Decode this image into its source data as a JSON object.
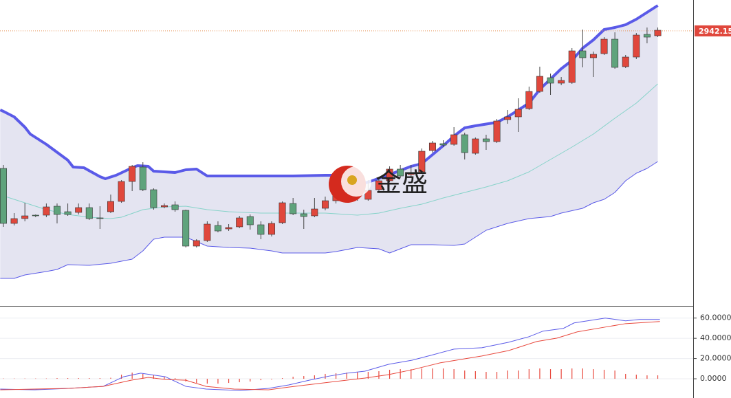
{
  "watermark": "金盛",
  "chart_data": [
    {
      "type": "candlestick",
      "xlim": [
        -0.32,
        64.3
      ],
      "ylim": [
        2142,
        3032
      ],
      "up_color": "#e0473c",
      "down_color": "#5fa37c",
      "price_line_color": "#e8955a",
      "price_label": 2942.15,
      "x": [
        0,
        1,
        2,
        3,
        4,
        5,
        6,
        7,
        8,
        9,
        10,
        11,
        12,
        13,
        14,
        15,
        16,
        17,
        18,
        19,
        20,
        21,
        22,
        23,
        24,
        25,
        26,
        27,
        28,
        29,
        30,
        31,
        32,
        33,
        34,
        35,
        36,
        37,
        38,
        39,
        40,
        41,
        42,
        43,
        44,
        45,
        46,
        47,
        48,
        49,
        50,
        51,
        52,
        53,
        54,
        55,
        56,
        57,
        58,
        59,
        60,
        61
      ],
      "open": [
        2542,
        2382,
        2396,
        2406,
        2406,
        2432,
        2416,
        2414,
        2428,
        2398,
        2416,
        2446,
        2504,
        2546,
        2480,
        2430,
        2436,
        2420,
        2316,
        2332,
        2376,
        2366,
        2372,
        2402,
        2378,
        2350,
        2384,
        2440,
        2410,
        2404,
        2426,
        2448,
        2458,
        2492,
        2452,
        2480,
        2506,
        2540,
        2524,
        2532,
        2594,
        2614,
        2612,
        2640,
        2586,
        2628,
        2620,
        2684,
        2692,
        2716,
        2766,
        2806,
        2790,
        2792,
        2884,
        2864,
        2876,
        2918,
        2838,
        2866,
        2932,
        2928
      ],
      "high": [
        2552,
        2412,
        2442,
        2408,
        2440,
        2440,
        2440,
        2440,
        2440,
        2432,
        2466,
        2508,
        2552,
        2560,
        2484,
        2440,
        2446,
        2422,
        2336,
        2388,
        2388,
        2380,
        2404,
        2408,
        2388,
        2388,
        2446,
        2456,
        2422,
        2456,
        2460,
        2492,
        2508,
        2508,
        2508,
        2516,
        2548,
        2552,
        2552,
        2600,
        2622,
        2624,
        2662,
        2646,
        2632,
        2640,
        2686,
        2712,
        2746,
        2780,
        2838,
        2818,
        2808,
        2892,
        2946,
        2882,
        2924,
        2938,
        2872,
        2936,
        2952,
        2952
      ],
      "low": [
        2372,
        2376,
        2388,
        2400,
        2400,
        2382,
        2404,
        2408,
        2392,
        2366,
        2412,
        2442,
        2476,
        2476,
        2422,
        2426,
        2416,
        2312,
        2312,
        2328,
        2356,
        2360,
        2368,
        2364,
        2336,
        2344,
        2380,
        2406,
        2366,
        2400,
        2420,
        2440,
        2448,
        2448,
        2448,
        2476,
        2502,
        2516,
        2516,
        2528,
        2588,
        2604,
        2608,
        2568,
        2582,
        2596,
        2616,
        2672,
        2648,
        2712,
        2762,
        2756,
        2784,
        2788,
        2836,
        2808,
        2872,
        2832,
        2834,
        2860,
        2906,
        2924
      ],
      "close": [
        2382,
        2396,
        2404,
        2404,
        2430,
        2408,
        2408,
        2428,
        2396,
        2396,
        2446,
        2504,
        2548,
        2480,
        2428,
        2434,
        2422,
        2316,
        2332,
        2380,
        2360,
        2370,
        2398,
        2378,
        2350,
        2382,
        2442,
        2410,
        2402,
        2424,
        2448,
        2472,
        2492,
        2468,
        2478,
        2506,
        2540,
        2520,
        2530,
        2592,
        2616,
        2610,
        2640,
        2588,
        2628,
        2620,
        2680,
        2692,
        2714,
        2766,
        2810,
        2790,
        2798,
        2884,
        2864,
        2874,
        2918,
        2836,
        2866,
        2930,
        2924,
        2944
      ],
      "bands": [
        {
          "color": "#5a5ae8",
          "width": 4,
          "x": [
            -0.3,
            0,
            1,
            2,
            2.5,
            4,
            6,
            6.5,
            7.5,
            9,
            9.5,
            10.5,
            12,
            12.5,
            13.5,
            14,
            16,
            17,
            18,
            19,
            24,
            27,
            30,
            31,
            32,
            33,
            34,
            36,
            37,
            38,
            39,
            40,
            41,
            42,
            43,
            44,
            46,
            47,
            48,
            49,
            50,
            51,
            52,
            53,
            54,
            55,
            56,
            57,
            58,
            59,
            60,
            61
          ],
          "values": [
            2712,
            2708,
            2692,
            2662,
            2642,
            2612,
            2566,
            2546,
            2544,
            2518,
            2512,
            2522,
            2544,
            2550,
            2548,
            2534,
            2530,
            2538,
            2540,
            2520,
            2520,
            2520,
            2522,
            2522,
            2508,
            2496,
            2502,
            2524,
            2536,
            2548,
            2556,
            2582,
            2608,
            2636,
            2660,
            2666,
            2676,
            2692,
            2712,
            2732,
            2772,
            2802,
            2832,
            2856,
            2892,
            2916,
            2946,
            2952,
            2960,
            2976,
            2996,
            3016
          ]
        },
        {
          "color": "#86d3c9",
          "width": 1,
          "x": [
            0,
            2,
            4,
            6,
            8,
            10,
            11,
            13,
            15,
            17,
            19,
            21,
            24,
            27,
            30,
            32,
            33,
            35,
            37,
            39,
            41,
            43,
            45,
            47,
            49,
            51,
            53,
            55,
            57,
            59,
            61
          ],
          "values": [
            2462,
            2442,
            2422,
            2408,
            2400,
            2396,
            2400,
            2422,
            2430,
            2432,
            2422,
            2416,
            2412,
            2412,
            2412,
            2408,
            2406,
            2412,
            2426,
            2438,
            2456,
            2472,
            2488,
            2506,
            2532,
            2568,
            2604,
            2642,
            2688,
            2732,
            2788
          ]
        },
        {
          "color": "#5a5ae8",
          "width": 1,
          "x": [
            -0.3,
            1,
            2,
            4,
            5,
            6,
            8,
            10,
            11,
            12,
            13,
            14,
            15,
            17,
            19,
            21,
            23,
            25,
            26,
            30,
            31,
            33,
            35,
            36,
            37,
            38,
            40,
            42,
            43,
            44,
            45,
            47,
            49,
            51,
            52,
            54,
            55,
            56,
            57,
            58,
            59,
            60,
            61
          ],
          "values": [
            2222,
            2222,
            2232,
            2242,
            2248,
            2262,
            2260,
            2266,
            2272,
            2278,
            2302,
            2336,
            2342,
            2342,
            2316,
            2312,
            2310,
            2302,
            2296,
            2296,
            2300,
            2312,
            2308,
            2296,
            2308,
            2320,
            2320,
            2318,
            2322,
            2342,
            2362,
            2382,
            2396,
            2402,
            2412,
            2426,
            2442,
            2452,
            2472,
            2506,
            2528,
            2542,
            2562
          ]
        }
      ],
      "band_fill": "#e4e4f1"
    },
    {
      "type": "line",
      "xlim": [
        -0.32,
        64.3
      ],
      "ylim": [
        -19,
        70
      ],
      "grid": true,
      "yticks": [
        {
          "value": 60,
          "label": "60.0000"
        },
        {
          "value": 40,
          "label": "40.0000"
        },
        {
          "value": 20,
          "label": "20.0000"
        },
        {
          "value": 0,
          "label": "0.0000"
        }
      ],
      "series": [
        {
          "color": "#5a5ae8",
          "x": [
            -0.3,
            2.9,
            6.1,
            9.3,
            11.2,
            12.8,
            15.1,
            17,
            18.9,
            22.1,
            24.7,
            26.6,
            28.5,
            30.4,
            32,
            33.7,
            35.9,
            38.1,
            40.1,
            42,
            44.6,
            47.1,
            49,
            50.3,
            52.2,
            53.2,
            56.1,
            58,
            59.3,
            61.2
          ],
          "values": [
            -10.2,
            -10.9,
            -9.5,
            -7.5,
            2.0,
            5.5,
            2.0,
            -7.5,
            -10.2,
            -11.6,
            -9.5,
            -6.1,
            -1.4,
            2.7,
            5.5,
            7.5,
            14.3,
            18.4,
            23.9,
            29.3,
            30.7,
            36.1,
            41.6,
            47.1,
            49.8,
            55.2,
            60.0,
            57.3,
            58.6,
            58.6
          ]
        },
        {
          "color": "#e8473c",
          "x": [
            -0.3,
            2.9,
            6.1,
            9.3,
            11.9,
            13.5,
            15.1,
            17,
            18.9,
            21.5,
            24.7,
            26.6,
            30.4,
            33.7,
            35.9,
            38.1,
            40.7,
            44.6,
            47.1,
            49.7,
            51.6,
            53.5,
            56.1,
            58,
            61.2
          ],
          "values": [
            -10.9,
            -10.2,
            -9.5,
            -7.5,
            -1.4,
            1.4,
            -0.7,
            -1.4,
            -7.5,
            -10.2,
            -10.9,
            -8.2,
            -3.4,
            0.7,
            4.1,
            8.9,
            15.7,
            22.5,
            27.9,
            36.8,
            40.2,
            46.4,
            51.1,
            54.5,
            56.6
          ]
        }
      ],
      "histogram": {
        "color": "#e8473c",
        "x": [
          0,
          1,
          2,
          3,
          4,
          5,
          6,
          7,
          8,
          9,
          10,
          11,
          12,
          13,
          14,
          15,
          16,
          17,
          18,
          19,
          20,
          21,
          22,
          23,
          24,
          25,
          26,
          27,
          28,
          29,
          30,
          31,
          32,
          33,
          34,
          35,
          36,
          37,
          38,
          39,
          40,
          41,
          42,
          43,
          44,
          45,
          46,
          47,
          48,
          49,
          50,
          51,
          52,
          53,
          54,
          55,
          56,
          57,
          58,
          59,
          60,
          61
        ],
        "values": [
          0.3,
          0.3,
          0.3,
          0.3,
          0.3,
          0.7,
          0.7,
          0.7,
          0.7,
          0.7,
          1,
          4.1,
          6.1,
          4.8,
          3.4,
          2.0,
          0.7,
          -2.7,
          -4.1,
          -4.8,
          -4.8,
          -4.1,
          -3.4,
          -2.7,
          -1.4,
          -0.7,
          0.7,
          2.0,
          2.7,
          3.4,
          4.8,
          5.5,
          6.1,
          6.8,
          6.8,
          7.5,
          8.9,
          9.5,
          9.5,
          10.2,
          10.2,
          10.2,
          9.5,
          8.2,
          7.5,
          6.8,
          6.8,
          8.2,
          8.2,
          9.5,
          10.2,
          9.5,
          9.5,
          10.2,
          10.2,
          9.5,
          8.9,
          8.2,
          4.8,
          4.1,
          3.4,
          3.4
        ]
      }
    }
  ]
}
